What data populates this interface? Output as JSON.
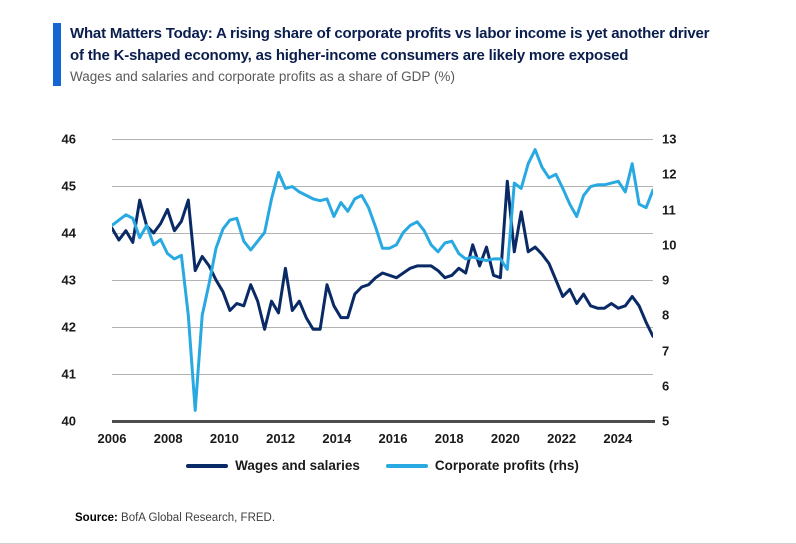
{
  "header": {
    "accent_color": "#1466d2",
    "title_line1": "What Matters Today: A rising share of corporate profits vs labor income is yet another driver",
    "title_line2": "of the K-shaped economy, as higher-income consumers are likely more exposed",
    "subtitle": "Wages and salaries and corporate profits as a share of GDP (%)"
  },
  "legend": {
    "items": [
      {
        "label": "Wages and salaries",
        "color": "#0a2a66"
      },
      {
        "label": "Corporate profits (rhs)",
        "color": "#29a9e1"
      }
    ]
  },
  "source": {
    "label": "Source:",
    "text": " BofA Global Research, FRED."
  },
  "chart_data": {
    "type": "line",
    "title": "Wages and salaries and corporate profits as a share of GDP (%)",
    "grid": "horizontal",
    "legend_position": "bottom",
    "left_axis": {
      "min": 40,
      "max": 46,
      "ticks": [
        46,
        45,
        44,
        43,
        42,
        41,
        40
      ]
    },
    "right_axis": {
      "min": 5,
      "max": 13,
      "ticks": [
        13,
        12,
        11,
        10,
        9,
        8,
        7,
        6,
        5
      ]
    },
    "x_tick_labels": [
      "2006",
      "2008",
      "2010",
      "2012",
      "2014",
      "2016",
      "2018",
      "2020",
      "2022",
      "2024"
    ],
    "categories": [
      "2006Q1",
      "2006Q2",
      "2006Q3",
      "2006Q4",
      "2007Q1",
      "2007Q2",
      "2007Q3",
      "2007Q4",
      "2008Q1",
      "2008Q2",
      "2008Q3",
      "2008Q4",
      "2009Q1",
      "2009Q2",
      "2009Q3",
      "2009Q4",
      "2010Q1",
      "2010Q2",
      "2010Q3",
      "2010Q4",
      "2011Q1",
      "2011Q2",
      "2011Q3",
      "2011Q4",
      "2012Q1",
      "2012Q2",
      "2012Q3",
      "2012Q4",
      "2013Q1",
      "2013Q2",
      "2013Q3",
      "2013Q4",
      "2014Q1",
      "2014Q2",
      "2014Q3",
      "2014Q4",
      "2015Q1",
      "2015Q2",
      "2015Q3",
      "2015Q4",
      "2016Q1",
      "2016Q2",
      "2016Q3",
      "2016Q4",
      "2017Q1",
      "2017Q2",
      "2017Q3",
      "2017Q4",
      "2018Q1",
      "2018Q2",
      "2018Q3",
      "2018Q4",
      "2019Q1",
      "2019Q2",
      "2019Q3",
      "2019Q4",
      "2020Q1",
      "2020Q2",
      "2020Q3",
      "2020Q4",
      "2021Q1",
      "2021Q2",
      "2021Q3",
      "2021Q4",
      "2022Q1",
      "2022Q2",
      "2022Q3",
      "2022Q4",
      "2023Q1",
      "2023Q2",
      "2023Q3",
      "2023Q4",
      "2024Q1",
      "2024Q2",
      "2024Q3",
      "2024Q4",
      "2025Q1",
      "2025Q2",
      "2025Q3"
    ],
    "series": [
      {
        "name": "Wages and salaries",
        "axis": "left",
        "color": "#0a2a66",
        "values": [
          44.1,
          43.85,
          44.05,
          43.8,
          44.7,
          44.15,
          44.0,
          44.2,
          44.5,
          44.05,
          44.25,
          44.7,
          43.2,
          43.5,
          43.3,
          43.0,
          42.75,
          42.35,
          42.5,
          42.45,
          42.9,
          42.55,
          41.95,
          42.55,
          42.3,
          43.25,
          42.35,
          42.55,
          42.2,
          41.95,
          41.95,
          42.9,
          42.45,
          42.2,
          42.2,
          42.7,
          42.85,
          42.9,
          43.05,
          43.15,
          43.1,
          43.05,
          43.15,
          43.25,
          43.3,
          43.3,
          43.3,
          43.2,
          43.05,
          43.1,
          43.25,
          43.15,
          43.75,
          43.3,
          43.7,
          43.1,
          43.05,
          45.1,
          43.6,
          44.45,
          43.6,
          43.7,
          43.55,
          43.35,
          43.0,
          42.65,
          42.8,
          42.5,
          42.7,
          42.45,
          42.4,
          42.4,
          42.5,
          42.4,
          42.45,
          42.65,
          42.45,
          42.1,
          41.8
        ]
      },
      {
        "name": "Corporate profits (rhs)",
        "axis": "right",
        "color": "#29a9e1",
        "values": [
          10.55,
          10.7,
          10.85,
          10.75,
          10.2,
          10.55,
          10.0,
          10.15,
          9.75,
          9.6,
          9.7,
          8.0,
          5.3,
          8.0,
          8.9,
          9.9,
          10.45,
          10.7,
          10.75,
          10.1,
          9.85,
          10.1,
          10.35,
          11.3,
          12.05,
          11.6,
          11.65,
          11.5,
          11.4,
          11.3,
          11.25,
          11.3,
          10.8,
          11.2,
          10.95,
          11.3,
          11.4,
          11.05,
          10.5,
          9.9,
          9.9,
          10.0,
          10.35,
          10.55,
          10.65,
          10.4,
          10.0,
          9.8,
          10.05,
          10.1,
          9.75,
          9.6,
          9.65,
          9.6,
          9.55,
          9.6,
          9.6,
          9.3,
          11.75,
          11.6,
          12.3,
          12.7,
          12.2,
          11.9,
          12.0,
          11.6,
          11.15,
          10.8,
          11.4,
          11.65,
          11.7,
          11.7,
          11.75,
          11.8,
          11.5,
          12.3,
          11.15,
          11.05,
          11.55
        ]
      }
    ]
  }
}
